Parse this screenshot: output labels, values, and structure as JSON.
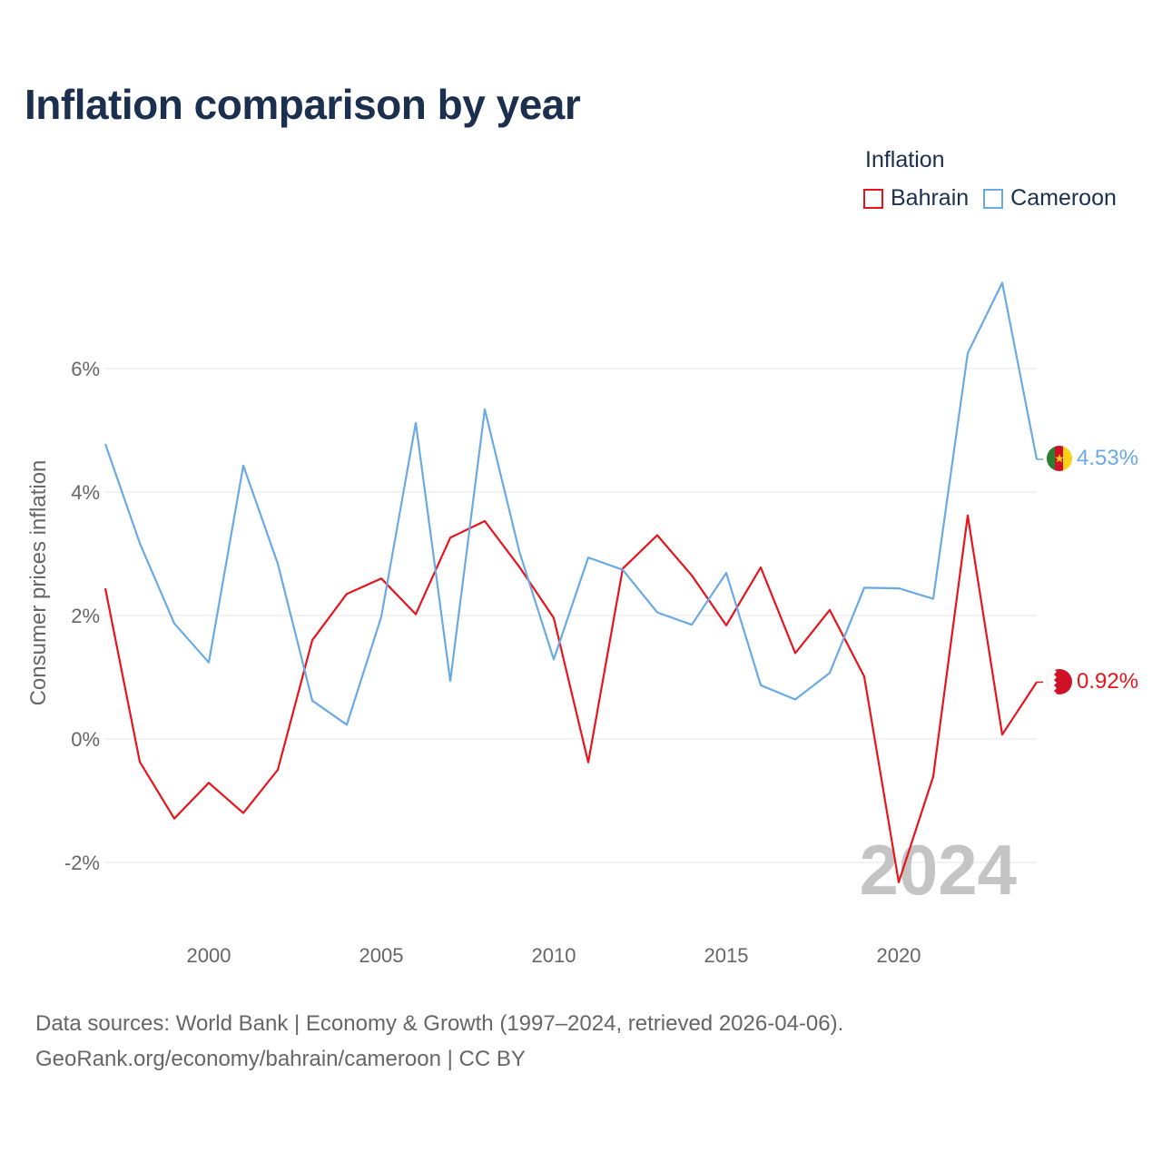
{
  "title": "Inflation comparison by year",
  "legend": {
    "title": "Inflation",
    "items": [
      {
        "label": "Bahrain",
        "color": "#e8141c"
      },
      {
        "label": "Cameroon",
        "color": "#6aaae4"
      }
    ]
  },
  "chart_data": {
    "type": "line",
    "title": "Inflation comparison by year",
    "xlabel": "",
    "ylabel": "Consumer prices inflation",
    "xlim": [
      1997,
      2024
    ],
    "ylim": [
      -3,
      7.5
    ],
    "x_ticks": [
      2000,
      2005,
      2010,
      2015,
      2020
    ],
    "y_ticks": [
      {
        "value": 6,
        "label": "6%"
      },
      {
        "value": 4,
        "label": "4%"
      },
      {
        "value": 2,
        "label": "2%"
      },
      {
        "value": 0,
        "label": "0%"
      },
      {
        "value": -2,
        "label": "-2%"
      }
    ],
    "grid": true,
    "x": [
      1997,
      1998,
      1999,
      2000,
      2001,
      2002,
      2003,
      2004,
      2005,
      2006,
      2007,
      2008,
      2009,
      2010,
      2011,
      2012,
      2013,
      2014,
      2015,
      2016,
      2017,
      2018,
      2019,
      2020,
      2021,
      2022,
      2023,
      2024
    ],
    "series": [
      {
        "name": "Bahrain",
        "color": "#e8141c",
        "end_label": "0.92%",
        "values": [
          2.44,
          -0.37,
          -1.29,
          -0.71,
          -1.2,
          -0.5,
          1.6,
          2.35,
          2.6,
          2.02,
          3.26,
          3.53,
          2.79,
          1.96,
          -0.38,
          2.76,
          3.3,
          2.65,
          1.84,
          2.78,
          1.39,
          2.09,
          1.01,
          -2.32,
          -0.61,
          3.62,
          0.07,
          0.92
        ]
      },
      {
        "name": "Cameroon",
        "color": "#6aaae4",
        "end_label": "4.53%",
        "values": [
          4.78,
          3.17,
          1.87,
          1.24,
          4.43,
          2.84,
          0.62,
          0.23,
          1.98,
          5.12,
          0.94,
          5.34,
          3.04,
          1.29,
          2.94,
          2.74,
          2.05,
          1.85,
          2.69,
          0.87,
          0.64,
          1.07,
          2.45,
          2.44,
          2.27,
          6.25,
          7.39,
          4.53
        ]
      }
    ],
    "watermark": "2024"
  },
  "source": {
    "line1": "Data sources: World Bank | Economy & Growth (1997–2024, retrieved 2026-04-06).",
    "line2": "GeoRank.org/economy/bahrain/cameroon | CC BY"
  },
  "icons": {
    "bahrain": "bahrain-flag-icon",
    "cameroon": "cameroon-flag-icon"
  }
}
